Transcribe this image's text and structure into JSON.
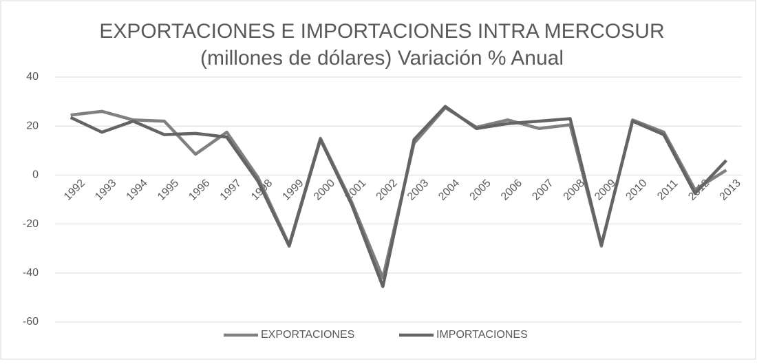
{
  "chart_data": {
    "type": "line",
    "title": "EXPORTACIONES E IMPORTACIONES INTRA MERCOSUR",
    "subtitle": "(millones de dólares) Variación % Anual",
    "categories": [
      "1992",
      "1993",
      "1994",
      "1995",
      "1996",
      "1997",
      "1998",
      "1999",
      "2000",
      "2001",
      "2002",
      "2003",
      "2004",
      "2005",
      "2006",
      "2007",
      "2008",
      "2009",
      "2010",
      "2011",
      "2012",
      "2013"
    ],
    "series": [
      {
        "name": "EXPORTACIONES",
        "color": "#808080",
        "values": [
          24.5,
          26,
          22.5,
          22,
          8.5,
          17.5,
          -1,
          -28.5,
          15,
          -11,
          -42,
          13,
          27.5,
          19.5,
          22.5,
          19,
          20.5,
          -29,
          22.5,
          17.5,
          -6,
          2
        ]
      },
      {
        "name": "IMPORTACIONES",
        "color": "#646464",
        "values": [
          23.5,
          17.5,
          22,
          16.5,
          17,
          15.5,
          -2.5,
          -29,
          14.5,
          -12,
          -45.5,
          14.5,
          28,
          19,
          21,
          22,
          23,
          -28.5,
          22,
          16.5,
          -7.5,
          6
        ]
      }
    ],
    "ylim": [
      -60,
      40
    ],
    "yticks": [
      -60,
      -40,
      -20,
      0,
      20,
      40
    ],
    "grid": true,
    "legend": "bottom"
  }
}
